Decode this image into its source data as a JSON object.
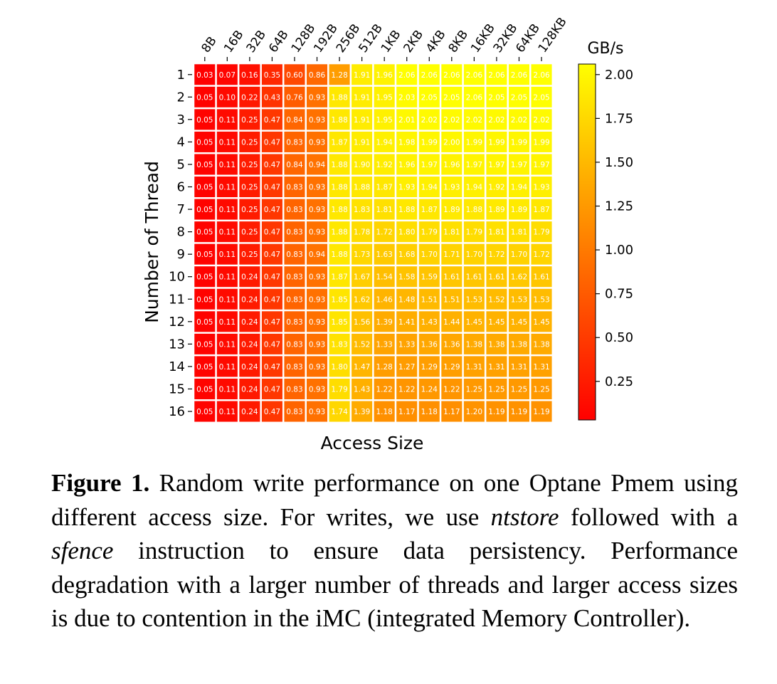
{
  "chart_data": {
    "type": "heatmap",
    "title": "",
    "xlabel": "Access Size",
    "ylabel": "Number of Thread",
    "x_categories": [
      "8B",
      "16B",
      "32B",
      "64B",
      "128B",
      "192B",
      "256B",
      "512B",
      "1KB",
      "2KB",
      "4KB",
      "8KB",
      "16KB",
      "32KB",
      "64KB",
      "128KB"
    ],
    "y_categories": [
      "1",
      "2",
      "3",
      "4",
      "5",
      "6",
      "7",
      "8",
      "9",
      "10",
      "11",
      "12",
      "13",
      "14",
      "15",
      "16"
    ],
    "values": [
      [
        0.03,
        0.07,
        0.16,
        0.35,
        0.6,
        0.86,
        1.28,
        1.91,
        1.96,
        2.06,
        2.06,
        2.06,
        2.06,
        2.06,
        2.06,
        2.06
      ],
      [
        0.05,
        0.1,
        0.22,
        0.43,
        0.76,
        0.93,
        1.88,
        1.91,
        1.95,
        2.03,
        2.05,
        2.05,
        2.06,
        2.05,
        2.05,
        2.05
      ],
      [
        0.05,
        0.11,
        0.25,
        0.47,
        0.84,
        0.93,
        1.88,
        1.91,
        1.95,
        2.01,
        2.02,
        2.02,
        2.02,
        2.02,
        2.02,
        2.02
      ],
      [
        0.05,
        0.11,
        0.25,
        0.47,
        0.83,
        0.93,
        1.87,
        1.91,
        1.94,
        1.98,
        1.99,
        2.0,
        1.99,
        1.99,
        1.99,
        1.99
      ],
      [
        0.05,
        0.11,
        0.25,
        0.47,
        0.84,
        0.94,
        1.88,
        1.9,
        1.92,
        1.96,
        1.97,
        1.96,
        1.97,
        1.97,
        1.97,
        1.97
      ],
      [
        0.05,
        0.11,
        0.25,
        0.47,
        0.83,
        0.93,
        1.88,
        1.88,
        1.87,
        1.93,
        1.94,
        1.93,
        1.94,
        1.92,
        1.94,
        1.93
      ],
      [
        0.05,
        0.11,
        0.25,
        0.47,
        0.83,
        0.93,
        1.88,
        1.83,
        1.81,
        1.88,
        1.87,
        1.89,
        1.88,
        1.89,
        1.89,
        1.87
      ],
      [
        0.05,
        0.11,
        0.25,
        0.47,
        0.83,
        0.93,
        1.88,
        1.78,
        1.72,
        1.8,
        1.79,
        1.81,
        1.79,
        1.81,
        1.81,
        1.79
      ],
      [
        0.05,
        0.11,
        0.25,
        0.47,
        0.83,
        0.94,
        1.88,
        1.73,
        1.63,
        1.68,
        1.7,
        1.71,
        1.7,
        1.72,
        1.7,
        1.72
      ],
      [
        0.05,
        0.11,
        0.24,
        0.47,
        0.83,
        0.93,
        1.87,
        1.67,
        1.54,
        1.58,
        1.59,
        1.61,
        1.61,
        1.61,
        1.62,
        1.61
      ],
      [
        0.05,
        0.11,
        0.24,
        0.47,
        0.83,
        0.93,
        1.85,
        1.62,
        1.46,
        1.48,
        1.51,
        1.51,
        1.53,
        1.52,
        1.53,
        1.53
      ],
      [
        0.05,
        0.11,
        0.24,
        0.47,
        0.83,
        0.93,
        1.85,
        1.56,
        1.39,
        1.41,
        1.43,
        1.44,
        1.45,
        1.45,
        1.45,
        1.45
      ],
      [
        0.05,
        0.11,
        0.24,
        0.47,
        0.83,
        0.93,
        1.83,
        1.52,
        1.33,
        1.33,
        1.36,
        1.36,
        1.38,
        1.38,
        1.38,
        1.38
      ],
      [
        0.05,
        0.11,
        0.24,
        0.47,
        0.83,
        0.93,
        1.8,
        1.47,
        1.28,
        1.27,
        1.29,
        1.29,
        1.31,
        1.31,
        1.31,
        1.31
      ],
      [
        0.05,
        0.11,
        0.24,
        0.47,
        0.83,
        0.93,
        1.79,
        1.43,
        1.22,
        1.22,
        1.24,
        1.22,
        1.25,
        1.25,
        1.25,
        1.25
      ],
      [
        0.05,
        0.11,
        0.24,
        0.47,
        0.83,
        0.93,
        1.74,
        1.39,
        1.18,
        1.17,
        1.18,
        1.17,
        1.2,
        1.19,
        1.19,
        1.19
      ]
    ],
    "colorbar": {
      "label": "GB/s",
      "ticks": [
        0.25,
        0.5,
        0.75,
        1.0,
        1.25,
        1.5,
        1.75,
        2.0
      ],
      "tick_labels": [
        "0.25",
        "0.50",
        "0.75",
        "1.00",
        "1.25",
        "1.50",
        "1.75",
        "2.00"
      ],
      "range": [
        0.03,
        2.06
      ],
      "colormap": "autumn",
      "low_color": "#ff0000",
      "high_color": "#ffff00"
    }
  },
  "caption": {
    "label": "Figure 1.",
    "text_1": " Random write performance on one Optane Pmem using different access size. For writes, we use ",
    "em_1": "ntstore",
    "text_2": " fol­lowed with a ",
    "em_2": "sfence",
    "text_3": " instruction to ensure data persistency. Performance degradation with a larger number of threads and larger access sizes is due to contention in the iMC (inte­grated Memory Controller)."
  }
}
